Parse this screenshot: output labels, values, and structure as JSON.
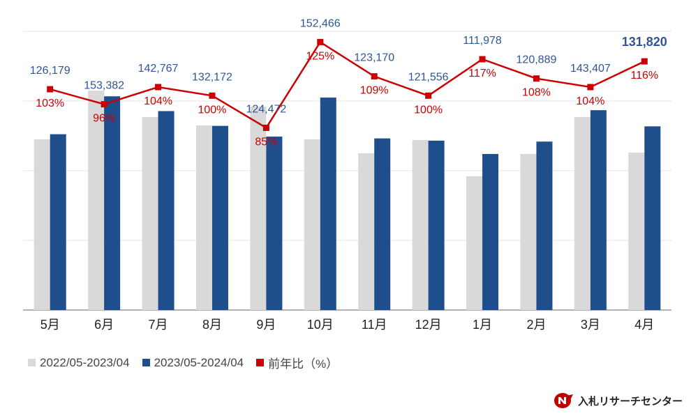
{
  "chart_data": {
    "type": "bar",
    "categories": [
      "5月",
      "6月",
      "7月",
      "8月",
      "9月",
      "10月",
      "11月",
      "12月",
      "1月",
      "2月",
      "3月",
      "4月"
    ],
    "series": [
      {
        "name": "2022/05-2023/04",
        "type": "bar",
        "color": "#d9d9d9",
        "values": [
          122500,
          157500,
          138500,
          132500,
          146000,
          122500,
          112500,
          122000,
          96000,
          112000,
          138500,
          113000
        ]
      },
      {
        "name": "2023/05-2024/04",
        "type": "bar",
        "color": "#1f4e8c",
        "values": [
          126179,
          153382,
          142767,
          132172,
          124472,
          152466,
          123170,
          121556,
          111978,
          120889,
          143407,
          131820
        ]
      },
      {
        "name": "前年比（%）",
        "type": "line",
        "color": "#cc0000",
        "values": [
          103,
          96,
          104,
          100,
          85,
          125,
          109,
          100,
          117,
          108,
          104,
          116
        ]
      }
    ],
    "value_labels": [
      "126,179",
      "153,382",
      "142,767",
      "132,172",
      "124,472",
      "152,466",
      "123,170",
      "121,556",
      "111,978",
      "120,889",
      "143,407",
      "131,820"
    ],
    "ratio_labels": [
      "103%",
      "96%",
      "104%",
      "100%",
      "85%",
      "125%",
      "109%",
      "100%",
      "117%",
      "108%",
      "104%",
      "116%"
    ],
    "highlight_index": 11,
    "ylim_bar": [
      0,
      200000
    ],
    "ylim_ratio": [
      0,
      130
    ],
    "grid": true,
    "legend_position": "bottom-left"
  },
  "legend": {
    "items": [
      {
        "label": "2022/05-2023/04",
        "color": "#d9d9d9"
      },
      {
        "label": "2023/05-2024/04",
        "color": "#1f4e8c"
      },
      {
        "label": "前年比（%）",
        "color": "#cc0000"
      }
    ]
  },
  "brand": {
    "name": "入札リサーチセンター"
  }
}
